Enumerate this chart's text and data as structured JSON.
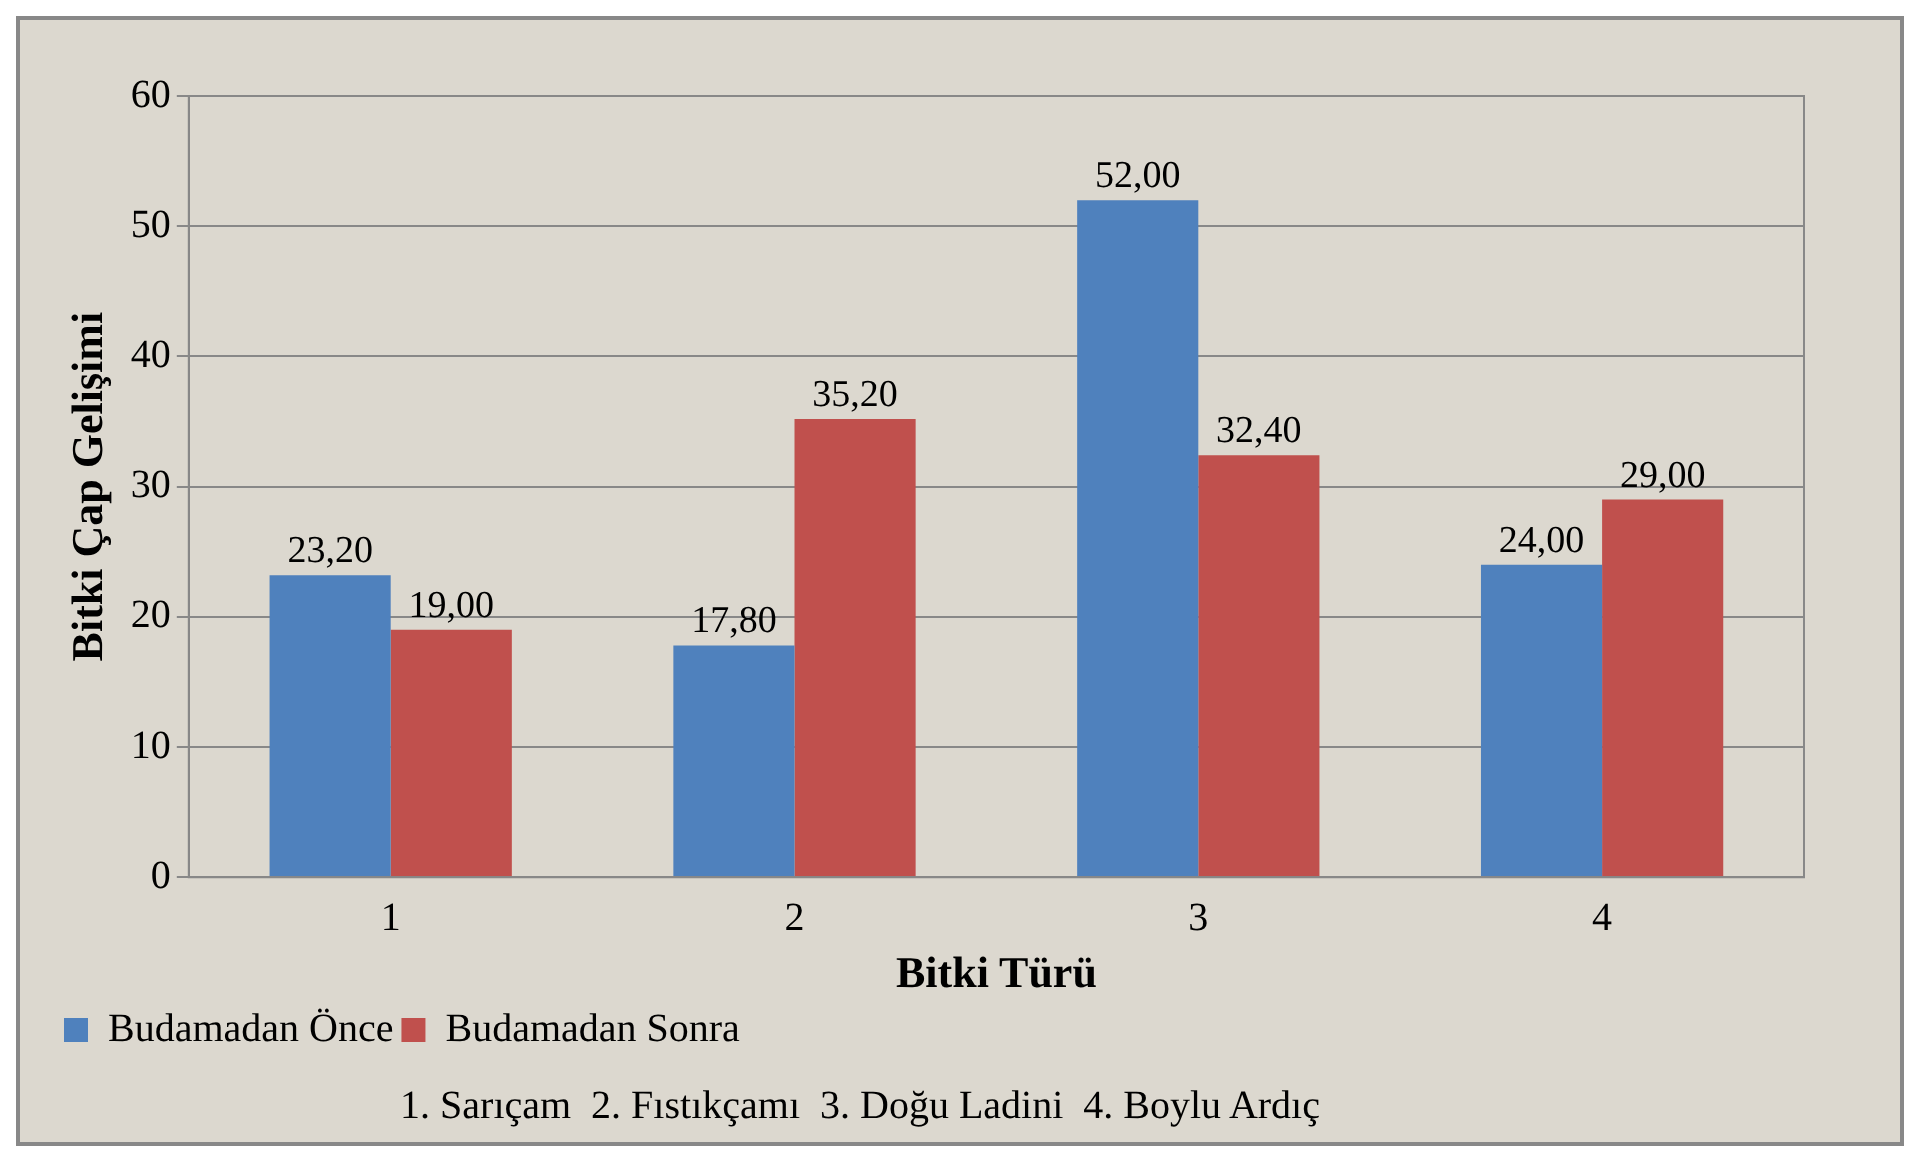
{
  "chart_data": {
    "type": "bar",
    "xlabel": "Bitki Türü",
    "ylabel": "Bitki Çap Gelişimi",
    "categories": [
      "1",
      "2",
      "3",
      "4"
    ],
    "series": [
      {
        "name": "Budamadan Önce",
        "color": "#4f81bd",
        "values": [
          23.2,
          17.8,
          52,
          24
        ],
        "value_labels": [
          "23,20",
          "17,80",
          "52,00",
          "24,00"
        ]
      },
      {
        "name": "Budamadan Sonra",
        "color": "#c0504d",
        "values": [
          19,
          35.2,
          32.4,
          29
        ],
        "value_labels": [
          "19,00",
          "35,20",
          "32,40",
          "29,00"
        ]
      }
    ],
    "ylim": [
      0,
      60
    ],
    "yticks": [
      0,
      10,
      20,
      30,
      40,
      50,
      60
    ],
    "grid": "y",
    "legend": "bottom",
    "annotations": [
      "1. Sarıçam  2. Fıstıkçamı  3. Doğu Ladini  4. Boylu Ardıç"
    ]
  }
}
